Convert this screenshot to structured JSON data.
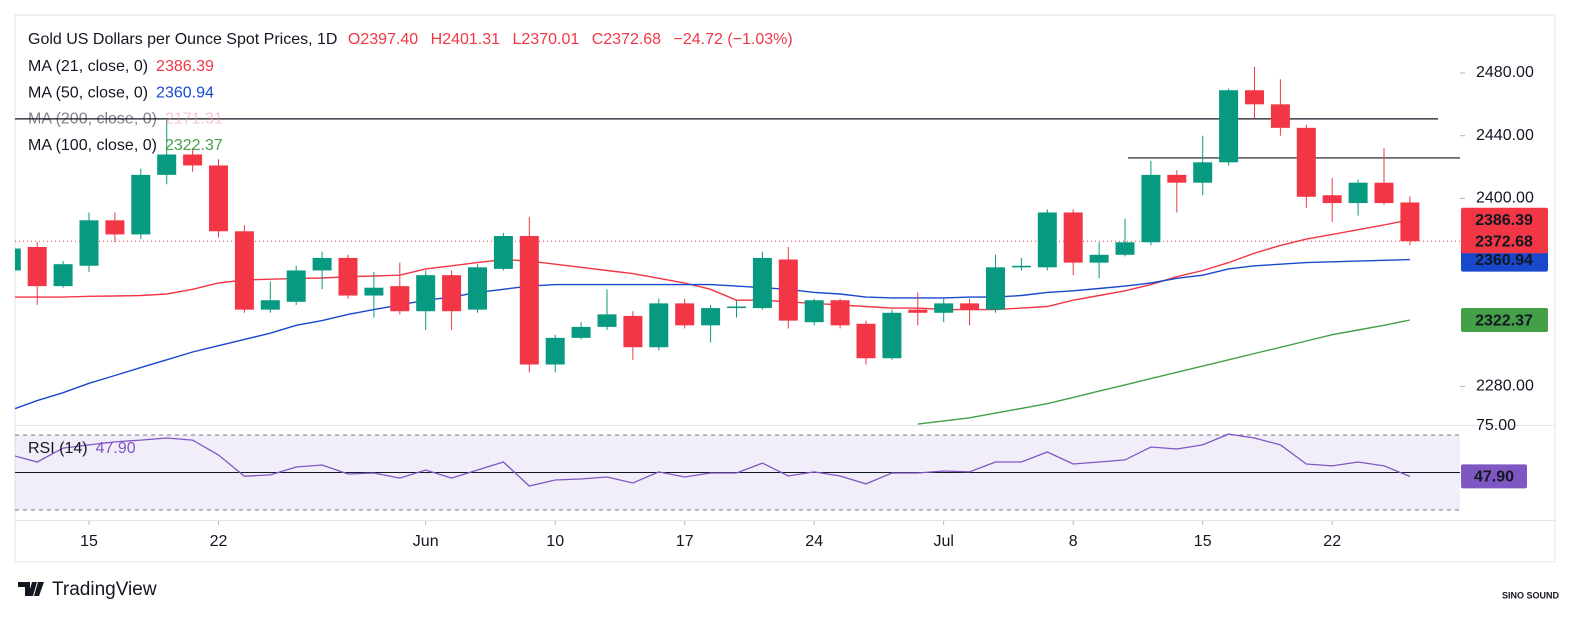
{
  "chart_data": {
    "type": "candlestick",
    "title": "Gold US Dollars per Ounce Spot Prices, 1D",
    "ohlc_labels": [
      "O2397.40",
      "H2401.31",
      "L2370.01",
      "C2372.68"
    ],
    "change_label": "−24.72 (−1.03%)",
    "up_color": "#089981",
    "down_color": "#f23645",
    "candles": {
      "open": [
        2354,
        2369,
        2344,
        2357,
        2386,
        2377,
        2415,
        2428,
        2421,
        2379,
        2329,
        2334,
        2354,
        2362,
        2338,
        2344,
        2328,
        2351,
        2329,
        2355,
        2376,
        2294,
        2311,
        2318,
        2325,
        2305,
        2333,
        2319,
        2330,
        2330,
        2361,
        2321,
        2335,
        2320,
        2298,
        2329,
        2327,
        2333,
        2329,
        2356,
        2356,
        2391,
        2359,
        2364,
        2372,
        2415,
        2410,
        2423,
        2469,
        2460,
        2445,
        2402,
        2397,
        2410,
        2397.4
      ],
      "high": [
        2370,
        2372,
        2360,
        2391,
        2391,
        2419,
        2450,
        2432,
        2425,
        2383,
        2347,
        2357,
        2366,
        2364,
        2353,
        2359,
        2354,
        2354,
        2358,
        2378,
        2388,
        2313,
        2321,
        2342,
        2328,
        2336,
        2336,
        2332,
        2335,
        2366,
        2369,
        2336,
        2336,
        2322,
        2329,
        2340,
        2336,
        2336,
        2364,
        2362,
        2393,
        2393,
        2372,
        2387,
        2424,
        2418,
        2440,
        2470,
        2484,
        2476,
        2447,
        2413,
        2412,
        2432,
        2401.31
      ],
      "low": [
        2352,
        2332,
        2343,
        2353,
        2372,
        2374,
        2409,
        2417,
        2375,
        2327,
        2327,
        2332,
        2342,
        2336,
        2324,
        2326,
        2316,
        2316,
        2327,
        2354,
        2289,
        2289,
        2310,
        2316,
        2297,
        2303,
        2317,
        2308,
        2324,
        2329,
        2317,
        2319,
        2317,
        2294,
        2297,
        2319,
        2321,
        2319,
        2327,
        2354,
        2354,
        2351,
        2349,
        2363,
        2370,
        2391,
        2402,
        2421,
        2451,
        2440,
        2394,
        2385,
        2389,
        2396,
        2370.01
      ],
      "close": [
        2368,
        2344,
        2358,
        2386,
        2377,
        2415,
        2428,
        2421,
        2379,
        2329,
        2335,
        2354,
        2362,
        2338,
        2343,
        2328,
        2351,
        2328,
        2356,
        2376,
        2294,
        2311,
        2318,
        2326,
        2305,
        2333,
        2319,
        2330,
        2331,
        2362,
        2322,
        2335,
        2319,
        2298,
        2327,
        2327,
        2333,
        2329,
        2356,
        2357,
        2391,
        2359,
        2364,
        2372,
        2415,
        2410,
        2423,
        2469,
        2460,
        2445,
        2401,
        2397,
        2410,
        2397,
        2372.68
      ]
    },
    "series": [
      {
        "name": "MA (21, close, 0)",
        "color": "#f23645",
        "values": [
          2337,
          2337,
          2337,
          2337.5,
          2337.7,
          2338,
          2339,
          2342,
          2346,
          2348,
          2348.4,
          2348.8,
          2349.2,
          2350,
          2350.5,
          2351,
          2355,
          2357,
          2359,
          2361,
          2360,
          2358,
          2356,
          2354,
          2352,
          2349,
          2346,
          2342,
          2335,
          2335,
          2334,
          2333,
          2332,
          2331,
          2330,
          2330,
          2329,
          2329,
          2329,
          2330,
          2331,
          2335,
          2338,
          2341,
          2345,
          2350,
          2354,
          2359,
          2365,
          2370,
          2374,
          2377,
          2380,
          2383,
          2386.39
        ]
      },
      {
        "name": "MA (50, close, 0)",
        "color": "#1848cc",
        "values": [
          2265,
          2271,
          2276,
          2282,
          2287,
          2292,
          2297,
          2302,
          2306,
          2310,
          2314,
          2319,
          2322,
          2326,
          2329,
          2332,
          2335,
          2337,
          2340,
          2342,
          2344,
          2345,
          2345,
          2345,
          2345,
          2345,
          2345,
          2345,
          2344,
          2343,
          2342,
          2340,
          2339,
          2337,
          2336.5,
          2336.5,
          2336.5,
          2337,
          2337,
          2338,
          2340,
          2341,
          2342.5,
          2344,
          2346,
          2349,
          2351,
          2355,
          2357,
          2358,
          2359,
          2359.5,
          2360,
          2360.5,
          2360.94
        ]
      },
      {
        "name": "MA (200, close, 0)",
        "color": "#f48fb1",
        "value": 2171.31
      },
      {
        "name": "MA (100, close, 0)",
        "color": "#43a047",
        "values": [
          null,
          null,
          null,
          null,
          null,
          null,
          null,
          null,
          null,
          null,
          null,
          null,
          null,
          null,
          null,
          null,
          null,
          null,
          null,
          null,
          null,
          null,
          null,
          null,
          null,
          null,
          null,
          null,
          null,
          null,
          null,
          null,
          null,
          null,
          null,
          2256,
          2258,
          2260,
          2263,
          2266,
          2269,
          2273,
          2277,
          2281,
          2285,
          2289,
          2293,
          2297,
          2301,
          2305,
          2309,
          2313,
          2316,
          2319,
          2322.37
        ]
      }
    ],
    "ylim": [
      2255.4,
      2517
    ],
    "yticks": [
      {
        "value": 2480,
        "label": "2480.00"
      },
      {
        "value": 2440,
        "label": "2440.00"
      },
      {
        "value": 2400,
        "label": "2400.00"
      },
      {
        "value": 2280,
        "label": "2280.00"
      }
    ],
    "levels": [
      2450.7,
      2425.8
    ],
    "xticks": [
      {
        "value": 3,
        "label": "15"
      },
      {
        "value": 8,
        "label": "22"
      },
      {
        "value": 16,
        "label": "Jun"
      },
      {
        "value": 21,
        "label": "10"
      },
      {
        "value": 26,
        "label": "17"
      },
      {
        "value": 31,
        "label": "24"
      },
      {
        "value": 36,
        "label": "Jul"
      },
      {
        "value": 41,
        "label": "8"
      },
      {
        "value": 46,
        "label": "15"
      },
      {
        "value": 51,
        "label": "22"
      }
    ],
    "rsi": {
      "title": "RSI (14)",
      "color": "#7e57c2",
      "value": 47.9,
      "value_label": "47.90",
      "values": [
        59.3,
        55.6,
        63,
        64.7,
        66.3,
        67.3,
        68.4,
        67.3,
        59.3,
        48,
        48.7,
        52.9,
        54,
        49.2,
        49.7,
        47,
        51.3,
        47,
        51.3,
        55.6,
        42.8,
        46,
        46.5,
        47.6,
        44.4,
        50.3,
        47.6,
        49.7,
        49.7,
        55,
        48.1,
        50.3,
        48.1,
        43.9,
        49.7,
        49.7,
        50.8,
        50.3,
        55.6,
        55.6,
        60.9,
        54.5,
        55.6,
        56.7,
        63.6,
        62.5,
        64.7,
        70.5,
        68.4,
        64.7,
        54.5,
        53.5,
        55.6,
        53.5,
        47.9
      ],
      "ylim": [
        27.3,
        74.8
      ],
      "yticks": [
        {
          "value": 75,
          "label": "75.00"
        }
      ],
      "bands": [
        70,
        30
      ],
      "midline": 50
    }
  },
  "footer": {
    "brand": "TradingView",
    "watermark": "SINO SOUND"
  }
}
